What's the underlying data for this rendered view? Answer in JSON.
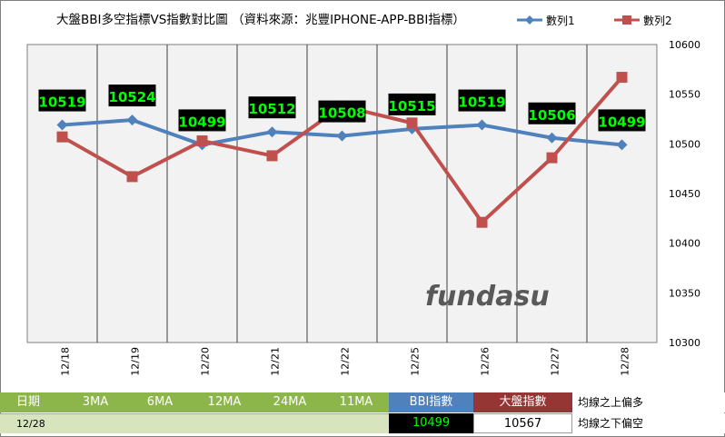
{
  "chart_data": {
    "type": "line",
    "title": "大盤BBI多空指標VS指數對比圖 （資料來源：兆豐IPHONE-APP-BBI指標）",
    "categories": [
      "12/18",
      "12/19",
      "12/20",
      "12/21",
      "12/22",
      "12/25",
      "12/26",
      "12/27",
      "12/28"
    ],
    "series": [
      {
        "name": "數列1",
        "color": "#4f81bd",
        "values": [
          10519,
          10524,
          10499,
          10512,
          10508,
          10515,
          10519,
          10506,
          10499
        ]
      },
      {
        "name": "數列2",
        "color": "#c0504d",
        "values": [
          10507,
          10467,
          10503,
          10488,
          10538,
          10521,
          10421,
          10486,
          10567
        ]
      }
    ],
    "data_labels": [
      "10519",
      "10524",
      "10499",
      "10512",
      "10508",
      "10515",
      "10519",
      "10506",
      "10499"
    ],
    "ylim": [
      10300,
      10600
    ],
    "yticks": [
      "10600",
      "10550",
      "10500",
      "10450",
      "10400",
      "10350",
      "10300"
    ],
    "ytick_values": [
      10600,
      10550,
      10500,
      10450,
      10400,
      10350,
      10300
    ],
    "legend_position": "top-right",
    "watermark": "fundasu"
  },
  "table": {
    "headers": [
      "日期",
      "3MA",
      "6MA",
      "12MA",
      "24MA",
      "11MA",
      "BBI指數",
      "大盤指數",
      "均線之上偏多"
    ],
    "date": "12/28",
    "bbi_value": "10499",
    "index_value": "10567",
    "note_below": "均線之下偏空"
  },
  "colors": {
    "plot_bg": "#f2f2f2",
    "label_bg": "#000000",
    "label_text": "#00ff00",
    "watermark": "#595959"
  }
}
